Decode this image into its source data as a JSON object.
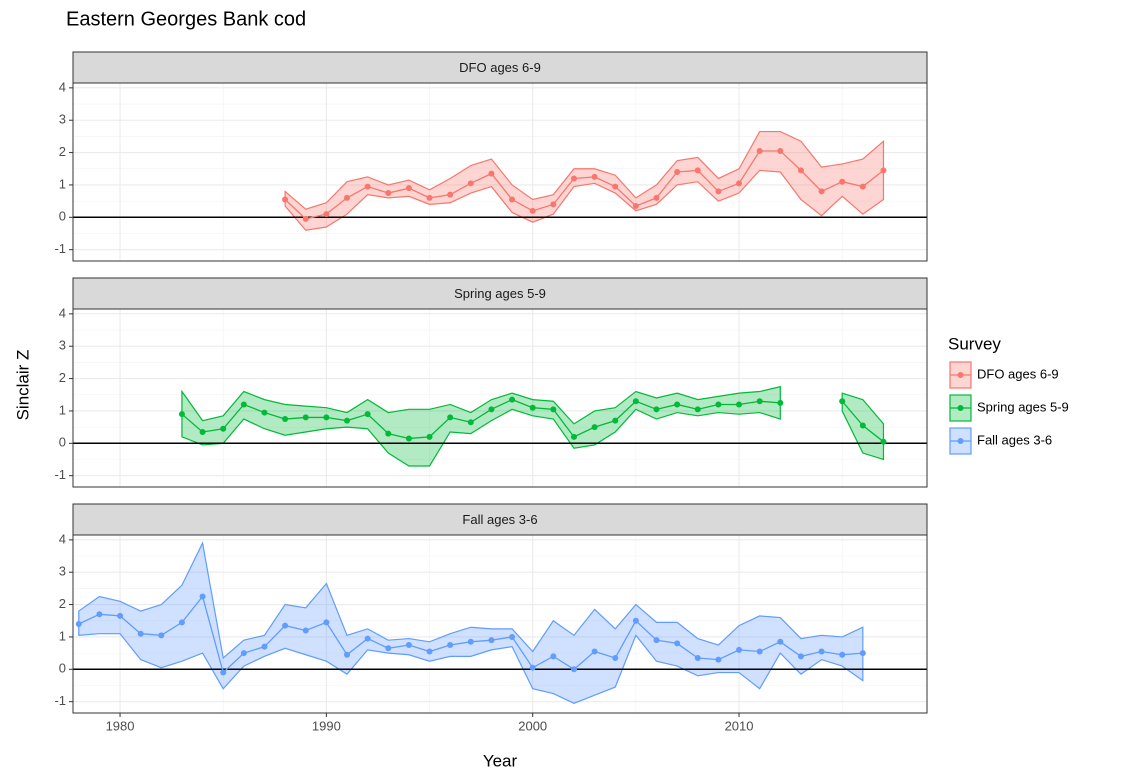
{
  "chart_data": {
    "type": "line",
    "title": "Eastern Georges Bank cod",
    "xlabel": "Year",
    "ylabel": "Sinclair Z",
    "legend_title": "Survey",
    "xlim": [
      1977.72,
      2019.11
    ],
    "xticks": [
      1980,
      1990,
      2000,
      2010
    ],
    "ylim": [
      -1.35,
      4.15
    ],
    "yticks": [
      -1,
      0,
      1,
      2,
      3,
      4
    ],
    "reference_line": 0,
    "grid": true,
    "series": [
      {
        "name": "DFO ages 6-9",
        "color": "#F8766D",
        "x": [
          1988,
          1989,
          1990,
          1991,
          1992,
          1993,
          1994,
          1995,
          1996,
          1997,
          1998,
          1999,
          2000,
          2001,
          2002,
          2003,
          2004,
          2005,
          2006,
          2007,
          2008,
          2009,
          2010,
          2011,
          2012,
          2013,
          2014,
          2015,
          2016,
          2017
        ],
        "values": [
          0.55,
          -0.05,
          0.1,
          0.6,
          0.95,
          0.75,
          0.9,
          0.6,
          0.7,
          1.05,
          1.35,
          0.55,
          0.2,
          0.4,
          1.2,
          1.25,
          0.95,
          0.35,
          0.6,
          1.4,
          1.45,
          0.8,
          1.05,
          2.05,
          2.05,
          1.45,
          0.8,
          1.1,
          0.95,
          1.45
        ],
        "lower": [
          0.35,
          -0.4,
          -0.3,
          0.1,
          0.7,
          0.6,
          0.65,
          0.4,
          0.45,
          0.75,
          0.95,
          0.15,
          -0.15,
          0.1,
          0.95,
          1.05,
          0.75,
          0.2,
          0.4,
          1.0,
          1.1,
          0.5,
          0.75,
          1.45,
          1.4,
          0.55,
          0.05,
          0.65,
          0.1,
          0.55
        ],
        "upper": [
          0.8,
          0.25,
          0.45,
          1.1,
          1.25,
          1.0,
          1.15,
          0.85,
          1.2,
          1.6,
          1.8,
          1.0,
          0.55,
          0.7,
          1.5,
          1.5,
          1.3,
          0.6,
          1.0,
          1.75,
          1.85,
          1.2,
          1.5,
          2.65,
          2.65,
          2.35,
          1.55,
          1.65,
          1.8,
          2.35
        ]
      },
      {
        "name": "Spring ages 5-9",
        "color": "#00BA38",
        "x": [
          1983,
          1984,
          1985,
          1986,
          1987,
          1988,
          1989,
          1990,
          1991,
          1992,
          1993,
          1994,
          1995,
          1996,
          1997,
          1998,
          1999,
          2000,
          2001,
          2002,
          2003,
          2004,
          2005,
          2006,
          2007,
          2008,
          2009,
          2010,
          2011,
          2012,
          2013,
          2014,
          2015,
          2016,
          2017
        ],
        "values": [
          0.9,
          0.35,
          0.45,
          1.2,
          0.95,
          0.75,
          0.8,
          0.8,
          0.7,
          0.9,
          0.3,
          0.15,
          0.2,
          0.8,
          0.65,
          1.05,
          1.35,
          1.1,
          1.05,
          0.2,
          0.5,
          0.7,
          1.3,
          1.05,
          1.2,
          1.05,
          1.2,
          1.2,
          1.3,
          1.25,
          null,
          null,
          1.3,
          0.55,
          0.05
        ],
        "lower": [
          0.2,
          -0.05,
          0.0,
          0.75,
          0.45,
          0.25,
          0.35,
          0.45,
          0.5,
          0.45,
          -0.3,
          -0.7,
          -0.7,
          0.35,
          0.3,
          0.7,
          1.05,
          0.85,
          0.75,
          -0.15,
          -0.05,
          0.35,
          1.05,
          0.75,
          0.95,
          0.85,
          0.95,
          0.9,
          0.95,
          0.75,
          null,
          null,
          1.0,
          -0.3,
          -0.5
        ],
        "upper": [
          1.6,
          0.7,
          0.85,
          1.6,
          1.35,
          1.2,
          1.15,
          1.1,
          0.95,
          1.35,
          0.95,
          1.05,
          1.05,
          1.2,
          0.95,
          1.35,
          1.55,
          1.35,
          1.3,
          0.6,
          1.0,
          1.1,
          1.6,
          1.4,
          1.55,
          1.35,
          1.45,
          1.55,
          1.6,
          1.75,
          null,
          null,
          1.55,
          1.35,
          0.6
        ]
      },
      {
        "name": "Fall ages 3-6",
        "color": "#619CFF",
        "x": [
          1978,
          1979,
          1980,
          1981,
          1982,
          1983,
          1984,
          1985,
          1986,
          1987,
          1988,
          1989,
          1990,
          1991,
          1992,
          1993,
          1994,
          1995,
          1996,
          1997,
          1998,
          1999,
          2000,
          2001,
          2002,
          2003,
          2004,
          2005,
          2006,
          2007,
          2008,
          2009,
          2010,
          2011,
          2012,
          2013,
          2014,
          2015,
          2016
        ],
        "values": [
          1.4,
          1.7,
          1.65,
          1.1,
          1.05,
          1.45,
          2.25,
          -0.1,
          0.5,
          0.7,
          1.35,
          1.2,
          1.45,
          0.45,
          0.95,
          0.65,
          0.75,
          0.55,
          0.75,
          0.85,
          0.9,
          1.0,
          0.05,
          0.4,
          0.0,
          0.55,
          0.35,
          1.5,
          0.9,
          0.8,
          0.35,
          0.3,
          0.6,
          0.55,
          0.85,
          0.4,
          0.55,
          0.45,
          0.5
        ],
        "lower": [
          1.05,
          1.1,
          1.1,
          0.3,
          0.05,
          0.25,
          0.5,
          -0.6,
          0.1,
          0.4,
          0.65,
          0.45,
          0.25,
          -0.15,
          0.6,
          0.5,
          0.45,
          0.25,
          0.4,
          0.4,
          0.6,
          0.7,
          -0.6,
          -0.75,
          -1.05,
          -0.8,
          -0.55,
          1.05,
          0.25,
          0.1,
          -0.2,
          -0.1,
          -0.1,
          -0.6,
          0.5,
          -0.15,
          0.3,
          0.1,
          -0.35
        ],
        "upper": [
          1.8,
          2.25,
          2.1,
          1.8,
          2.0,
          2.6,
          3.9,
          0.35,
          0.9,
          1.05,
          2.0,
          1.9,
          2.65,
          1.05,
          1.25,
          0.9,
          0.95,
          0.85,
          1.1,
          1.3,
          1.25,
          1.25,
          0.55,
          1.5,
          1.05,
          1.85,
          1.25,
          2.0,
          1.45,
          1.45,
          0.95,
          0.75,
          1.35,
          1.65,
          1.6,
          0.95,
          1.05,
          1.0,
          1.3
        ]
      }
    ]
  }
}
